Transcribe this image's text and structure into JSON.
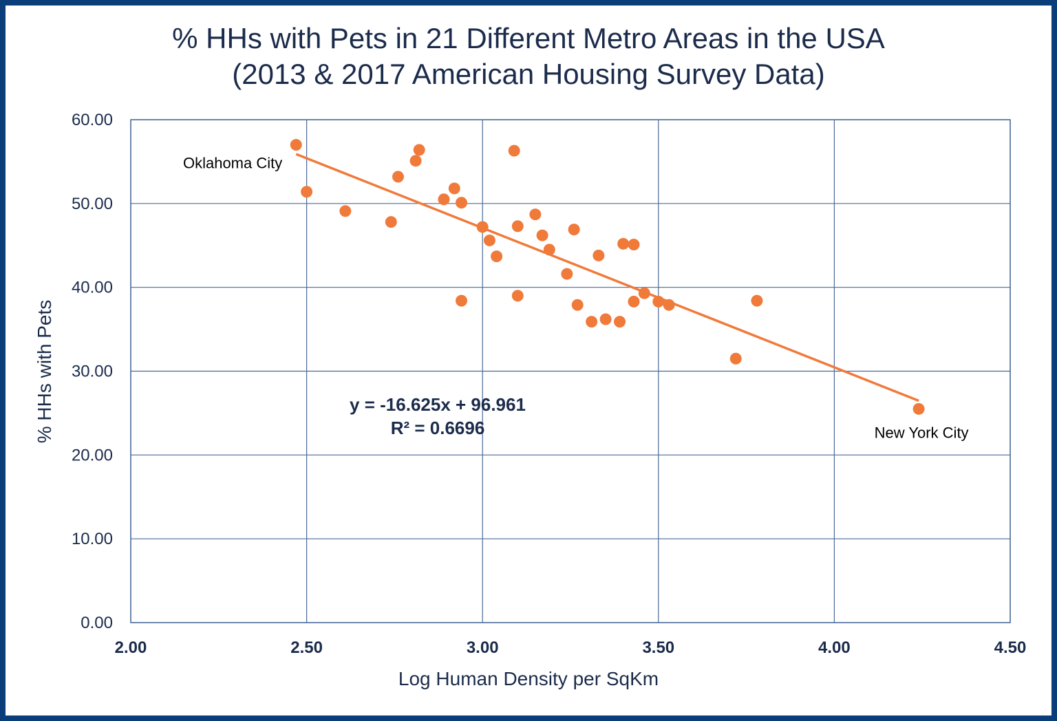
{
  "chart_data": {
    "type": "scatter",
    "title": "% HHs with Pets in 21 Different Metro Areas in the USA",
    "subtitle": "(2013 & 2017 American Housing Survey Data)",
    "xlabel": "Log Human Density per SqKm",
    "ylabel": "% HHs with Pets",
    "xlim": [
      2.0,
      4.5
    ],
    "ylim": [
      0.0,
      60.0
    ],
    "xticks": [
      "2.00",
      "2.50",
      "3.00",
      "3.50",
      "4.00",
      "4.50"
    ],
    "yticks": [
      "0.00",
      "10.00",
      "20.00",
      "30.00",
      "40.00",
      "50.00",
      "60.00"
    ],
    "grid": true,
    "point_color": "#f07a3a",
    "trendline_color": "#f07a3a",
    "grid_color": "#4a6a9a",
    "points": [
      {
        "x": 2.47,
        "y": 57.0
      },
      {
        "x": 2.5,
        "y": 51.4
      },
      {
        "x": 2.61,
        "y": 49.1
      },
      {
        "x": 2.74,
        "y": 47.8
      },
      {
        "x": 2.76,
        "y": 53.2
      },
      {
        "x": 2.81,
        "y": 55.1
      },
      {
        "x": 2.82,
        "y": 56.4
      },
      {
        "x": 2.89,
        "y": 50.5
      },
      {
        "x": 2.92,
        "y": 51.8
      },
      {
        "x": 2.94,
        "y": 50.1
      },
      {
        "x": 2.94,
        "y": 38.4
      },
      {
        "x": 3.0,
        "y": 47.2
      },
      {
        "x": 3.02,
        "y": 45.6
      },
      {
        "x": 3.04,
        "y": 43.7
      },
      {
        "x": 3.09,
        "y": 56.3
      },
      {
        "x": 3.1,
        "y": 47.3
      },
      {
        "x": 3.1,
        "y": 39.0
      },
      {
        "x": 3.15,
        "y": 48.7
      },
      {
        "x": 3.17,
        "y": 46.2
      },
      {
        "x": 3.19,
        "y": 44.5
      },
      {
        "x": 3.24,
        "y": 41.6
      },
      {
        "x": 3.26,
        "y": 46.9
      },
      {
        "x": 3.27,
        "y": 37.9
      },
      {
        "x": 3.31,
        "y": 35.9
      },
      {
        "x": 3.33,
        "y": 43.8
      },
      {
        "x": 3.35,
        "y": 36.2
      },
      {
        "x": 3.39,
        "y": 35.9
      },
      {
        "x": 3.4,
        "y": 45.2
      },
      {
        "x": 3.43,
        "y": 45.1
      },
      {
        "x": 3.43,
        "y": 38.3
      },
      {
        "x": 3.46,
        "y": 39.3
      },
      {
        "x": 3.5,
        "y": 38.3
      },
      {
        "x": 3.53,
        "y": 37.9
      },
      {
        "x": 3.72,
        "y": 31.5
      },
      {
        "x": 3.78,
        "y": 38.4
      },
      {
        "x": 4.24,
        "y": 25.5
      }
    ],
    "trendline": {
      "slope": -16.625,
      "intercept": 96.961,
      "x_range": [
        2.47,
        4.24
      ],
      "equation": "y = -16.625x + 96.961",
      "r_squared": "R² = 0.6696"
    },
    "annotations": [
      {
        "text": "Oklahoma City",
        "x": 2.47,
        "y": 57.0
      },
      {
        "text": "New York City",
        "x": 4.24,
        "y": 25.5
      }
    ]
  }
}
